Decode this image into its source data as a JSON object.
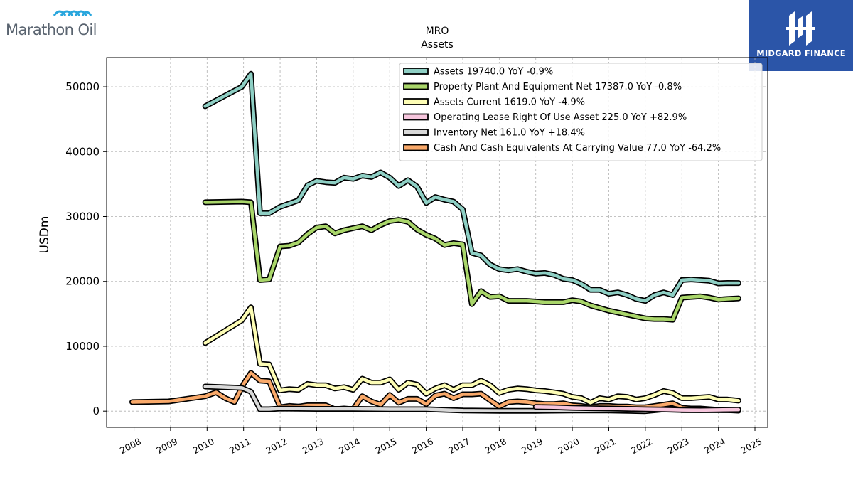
{
  "branding": {
    "left_logo_text": "Marathon Oil",
    "right_logo_text": "MIDGARD FINANCE",
    "right_logo_color": "#2b55a8"
  },
  "chart_data": {
    "type": "line",
    "title": "MRO",
    "subtitle": "Assets",
    "xlabel": "",
    "ylabel": "USDm",
    "x_ticks": [
      "2008",
      "2009",
      "2010",
      "2011",
      "2012",
      "2013",
      "2014",
      "2015",
      "2016",
      "2017",
      "2018",
      "2019",
      "2020",
      "2021",
      "2022",
      "2023",
      "2024",
      "2025"
    ],
    "y_ticks": [
      0,
      10000,
      20000,
      30000,
      40000,
      50000
    ],
    "xlim": [
      2007.25,
      2025.35
    ],
    "ylim": [
      -2500,
      54500
    ],
    "grid": true,
    "legend_position": "top-right",
    "series": [
      {
        "name": "Assets  19740.0 YoY -0.9%",
        "color": "#8ecfc4",
        "points": [
          [
            2009.95,
            47000
          ],
          [
            2010.95,
            50000
          ],
          [
            2011.2,
            52000
          ],
          [
            2011.45,
            30500
          ],
          [
            2011.7,
            30500
          ],
          [
            2012.0,
            31500
          ],
          [
            2012.25,
            32000
          ],
          [
            2012.5,
            32500
          ],
          [
            2012.75,
            34800
          ],
          [
            2013.0,
            35500
          ],
          [
            2013.25,
            35300
          ],
          [
            2013.5,
            35200
          ],
          [
            2013.75,
            36000
          ],
          [
            2014.0,
            35800
          ],
          [
            2014.25,
            36300
          ],
          [
            2014.5,
            36100
          ],
          [
            2014.75,
            36800
          ],
          [
            2015.0,
            36000
          ],
          [
            2015.25,
            34700
          ],
          [
            2015.5,
            35600
          ],
          [
            2015.75,
            34600
          ],
          [
            2016.0,
            32100
          ],
          [
            2016.25,
            33000
          ],
          [
            2016.5,
            32600
          ],
          [
            2016.75,
            32300
          ],
          [
            2017.0,
            31100
          ],
          [
            2017.25,
            24400
          ],
          [
            2017.5,
            24000
          ],
          [
            2017.75,
            22600
          ],
          [
            2018.0,
            21900
          ],
          [
            2018.25,
            21700
          ],
          [
            2018.5,
            21900
          ],
          [
            2018.75,
            21500
          ],
          [
            2019.0,
            21200
          ],
          [
            2019.25,
            21300
          ],
          [
            2019.5,
            21000
          ],
          [
            2019.75,
            20400
          ],
          [
            2020.0,
            20200
          ],
          [
            2020.25,
            19600
          ],
          [
            2020.5,
            18700
          ],
          [
            2020.75,
            18700
          ],
          [
            2021.0,
            18100
          ],
          [
            2021.25,
            18300
          ],
          [
            2021.5,
            17900
          ],
          [
            2021.75,
            17300
          ],
          [
            2022.0,
            17000
          ],
          [
            2022.25,
            17900
          ],
          [
            2022.5,
            18300
          ],
          [
            2022.75,
            17900
          ],
          [
            2023.0,
            20200
          ],
          [
            2023.25,
            20300
          ],
          [
            2023.5,
            20200
          ],
          [
            2023.75,
            20100
          ],
          [
            2024.0,
            19700
          ],
          [
            2024.25,
            19750
          ],
          [
            2024.55,
            19740
          ]
        ]
      },
      {
        "name": "Property Plant And Equipment Net  17387.0 YoY -0.8%",
        "color": "#a9d66a",
        "points": [
          [
            2009.95,
            32200
          ],
          [
            2010.95,
            32300
          ],
          [
            2011.2,
            32200
          ],
          [
            2011.45,
            20200
          ],
          [
            2011.7,
            20300
          ],
          [
            2012.0,
            25400
          ],
          [
            2012.25,
            25500
          ],
          [
            2012.5,
            26000
          ],
          [
            2012.75,
            27300
          ],
          [
            2013.0,
            28300
          ],
          [
            2013.25,
            28500
          ],
          [
            2013.5,
            27400
          ],
          [
            2013.75,
            27900
          ],
          [
            2014.0,
            28200
          ],
          [
            2014.25,
            28500
          ],
          [
            2014.5,
            27900
          ],
          [
            2014.75,
            28700
          ],
          [
            2015.0,
            29300
          ],
          [
            2015.25,
            29500
          ],
          [
            2015.5,
            29200
          ],
          [
            2015.75,
            28000
          ],
          [
            2016.0,
            27200
          ],
          [
            2016.25,
            26600
          ],
          [
            2016.5,
            25600
          ],
          [
            2016.75,
            25900
          ],
          [
            2017.0,
            25700
          ],
          [
            2017.25,
            16500
          ],
          [
            2017.5,
            18500
          ],
          [
            2017.75,
            17600
          ],
          [
            2018.0,
            17700
          ],
          [
            2018.25,
            17000
          ],
          [
            2018.5,
            17000
          ],
          [
            2018.75,
            17000
          ],
          [
            2019.0,
            16900
          ],
          [
            2019.25,
            16800
          ],
          [
            2019.5,
            16800
          ],
          [
            2019.75,
            16800
          ],
          [
            2020.0,
            17100
          ],
          [
            2020.25,
            16900
          ],
          [
            2020.5,
            16300
          ],
          [
            2020.75,
            15900
          ],
          [
            2021.0,
            15500
          ],
          [
            2021.25,
            15200
          ],
          [
            2021.5,
            14900
          ],
          [
            2021.75,
            14600
          ],
          [
            2022.0,
            14300
          ],
          [
            2022.25,
            14200
          ],
          [
            2022.5,
            14200
          ],
          [
            2022.75,
            14100
          ],
          [
            2023.0,
            17500
          ],
          [
            2023.25,
            17600
          ],
          [
            2023.5,
            17700
          ],
          [
            2023.75,
            17500
          ],
          [
            2024.0,
            17200
          ],
          [
            2024.25,
            17300
          ],
          [
            2024.55,
            17387
          ]
        ]
      },
      {
        "name": "Assets Current  1619.0 YoY -4.9%",
        "color": "#fdfdb5",
        "points": [
          [
            2009.95,
            10500
          ],
          [
            2010.95,
            14000
          ],
          [
            2011.2,
            16000
          ],
          [
            2011.45,
            7300
          ],
          [
            2011.7,
            7200
          ],
          [
            2012.0,
            3200
          ],
          [
            2012.25,
            3400
          ],
          [
            2012.5,
            3300
          ],
          [
            2012.75,
            4200
          ],
          [
            2013.0,
            4000
          ],
          [
            2013.25,
            4000
          ],
          [
            2013.5,
            3500
          ],
          [
            2013.75,
            3700
          ],
          [
            2014.0,
            3300
          ],
          [
            2014.25,
            5000
          ],
          [
            2014.5,
            4400
          ],
          [
            2014.75,
            4400
          ],
          [
            2015.0,
            4900
          ],
          [
            2015.25,
            3300
          ],
          [
            2015.5,
            4400
          ],
          [
            2015.75,
            4100
          ],
          [
            2016.0,
            2700
          ],
          [
            2016.25,
            3500
          ],
          [
            2016.5,
            4000
          ],
          [
            2016.75,
            3300
          ],
          [
            2017.0,
            4000
          ],
          [
            2017.25,
            4000
          ],
          [
            2017.5,
            4700
          ],
          [
            2017.75,
            4000
          ],
          [
            2018.0,
            2800
          ],
          [
            2018.25,
            3300
          ],
          [
            2018.5,
            3500
          ],
          [
            2018.75,
            3400
          ],
          [
            2019.0,
            3200
          ],
          [
            2019.25,
            3100
          ],
          [
            2019.5,
            2900
          ],
          [
            2019.75,
            2700
          ],
          [
            2020.0,
            2200
          ],
          [
            2020.25,
            2000
          ],
          [
            2020.5,
            1300
          ],
          [
            2020.75,
            2000
          ],
          [
            2021.0,
            1800
          ],
          [
            2021.25,
            2300
          ],
          [
            2021.5,
            2200
          ],
          [
            2021.75,
            1800
          ],
          [
            2022.0,
            2000
          ],
          [
            2022.25,
            2500
          ],
          [
            2022.5,
            3100
          ],
          [
            2022.75,
            2800
          ],
          [
            2023.0,
            2000
          ],
          [
            2023.25,
            2000
          ],
          [
            2023.5,
            2100
          ],
          [
            2023.75,
            2200
          ],
          [
            2024.0,
            1800
          ],
          [
            2024.25,
            1800
          ],
          [
            2024.55,
            1619
          ]
        ]
      },
      {
        "name": "Operating Lease Right Of Use Asset  225.0 YoY +82.9%",
        "color": "#f6c6dd",
        "points": [
          [
            2019.0,
            650
          ],
          [
            2019.5,
            600
          ],
          [
            2020.0,
            500
          ],
          [
            2020.5,
            450
          ],
          [
            2021.0,
            400
          ],
          [
            2021.5,
            350
          ],
          [
            2022.0,
            300
          ],
          [
            2022.5,
            250
          ],
          [
            2023.0,
            170
          ],
          [
            2023.5,
            150
          ],
          [
            2024.0,
            200
          ],
          [
            2024.55,
            225
          ]
        ]
      },
      {
        "name": "Inventory Net  161.0 YoY +18.4%",
        "color": "#d9d9d9",
        "points": [
          [
            2009.95,
            3800
          ],
          [
            2010.95,
            3600
          ],
          [
            2011.2,
            3000
          ],
          [
            2011.45,
            300
          ],
          [
            2011.7,
            300
          ],
          [
            2012.0,
            400
          ],
          [
            2013.0,
            350
          ],
          [
            2014.0,
            350
          ],
          [
            2015.0,
            300
          ],
          [
            2016.0,
            300
          ],
          [
            2017.0,
            100
          ],
          [
            2018.0,
            50
          ],
          [
            2019.0,
            50
          ],
          [
            2020.0,
            100
          ],
          [
            2021.0,
            100
          ],
          [
            2022.0,
            0
          ],
          [
            2022.75,
            400
          ],
          [
            2023.0,
            150
          ],
          [
            2024.0,
            140
          ],
          [
            2024.55,
            161
          ]
        ]
      },
      {
        "name": "Cash And Cash Equivalents At Carrying Value  77.0 YoY -64.2%",
        "color": "#f9a96a",
        "points": [
          [
            2007.95,
            1400
          ],
          [
            2008.95,
            1500
          ],
          [
            2009.95,
            2300
          ],
          [
            2010.25,
            2900
          ],
          [
            2010.5,
            2000
          ],
          [
            2010.75,
            1400
          ],
          [
            2011.0,
            4200
          ],
          [
            2011.2,
            5900
          ],
          [
            2011.45,
            4700
          ],
          [
            2011.7,
            4600
          ],
          [
            2012.0,
            600
          ],
          [
            2012.25,
            800
          ],
          [
            2012.5,
            700
          ],
          [
            2012.75,
            900
          ],
          [
            2013.0,
            900
          ],
          [
            2013.25,
            900
          ],
          [
            2013.5,
            300
          ],
          [
            2013.75,
            400
          ],
          [
            2014.0,
            300
          ],
          [
            2014.25,
            2300
          ],
          [
            2014.5,
            1500
          ],
          [
            2014.75,
            1000
          ],
          [
            2015.0,
            2500
          ],
          [
            2015.25,
            1300
          ],
          [
            2015.5,
            1900
          ],
          [
            2015.75,
            1900
          ],
          [
            2016.0,
            1100
          ],
          [
            2016.25,
            2400
          ],
          [
            2016.5,
            2700
          ],
          [
            2016.75,
            2000
          ],
          [
            2017.0,
            2600
          ],
          [
            2017.25,
            2600
          ],
          [
            2017.5,
            2700
          ],
          [
            2017.75,
            1700
          ],
          [
            2018.0,
            700
          ],
          [
            2018.25,
            1400
          ],
          [
            2018.5,
            1500
          ],
          [
            2018.75,
            1400
          ],
          [
            2019.0,
            1200
          ],
          [
            2019.25,
            1100
          ],
          [
            2019.5,
            1100
          ],
          [
            2019.75,
            1200
          ],
          [
            2020.0,
            900
          ],
          [
            2020.25,
            800
          ],
          [
            2020.5,
            600
          ],
          [
            2020.75,
            800
          ],
          [
            2021.0,
            800
          ],
          [
            2021.25,
            700
          ],
          [
            2021.5,
            700
          ],
          [
            2021.75,
            600
          ],
          [
            2022.0,
            600
          ],
          [
            2022.25,
            800
          ],
          [
            2022.5,
            1000
          ],
          [
            2022.75,
            1200
          ],
          [
            2023.0,
            500
          ],
          [
            2023.25,
            400
          ],
          [
            2023.5,
            400
          ],
          [
            2023.75,
            300
          ],
          [
            2024.0,
            200
          ],
          [
            2024.25,
            150
          ],
          [
            2024.55,
            77
          ]
        ]
      }
    ]
  }
}
